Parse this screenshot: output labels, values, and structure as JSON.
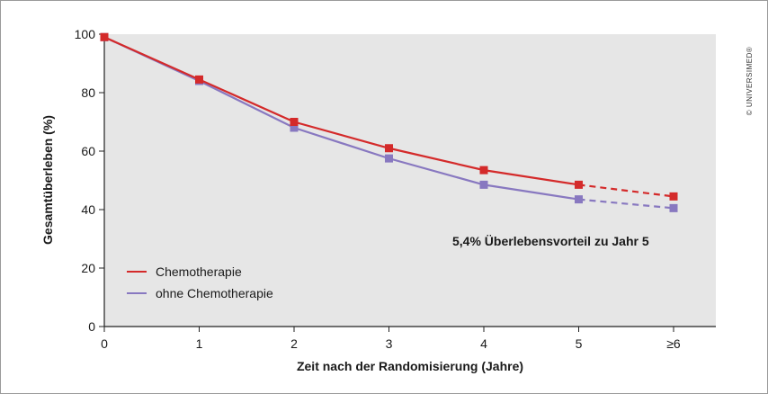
{
  "chart_data": {
    "type": "line",
    "categories": [
      "0",
      "1",
      "2",
      "3",
      "4",
      "5",
      "≥6"
    ],
    "x": [
      0,
      1,
      2,
      3,
      4,
      5,
      6
    ],
    "ylabel": "Gesamtüberleben (%)",
    "xlabel": "Zeit nach der Randomisierung (Jahre)",
    "ylim": [
      0,
      100
    ],
    "yticks": [
      0,
      20,
      40,
      60,
      80,
      100
    ],
    "grid": false,
    "legend_position": "bottom-left",
    "series": [
      {
        "name": "Chemotherapie",
        "color": "#d42a2a",
        "values": [
          99,
          84.5,
          70,
          61,
          53.5,
          48.5,
          44.5
        ],
        "dashed_from_index": 5
      },
      {
        "name": "ohne Chemotherapie",
        "color": "#8878c0",
        "values": [
          99,
          84,
          68,
          57.5,
          48.5,
          43.5,
          40.5
        ],
        "dashed_from_index": 5
      }
    ],
    "annotation": "5,4% Überlebensvorteil zu Jahr 5"
  },
  "credit": "© UNIVERSIMED®",
  "colors": {
    "plot_background": "#e6e6e6",
    "axis": "#222222"
  }
}
